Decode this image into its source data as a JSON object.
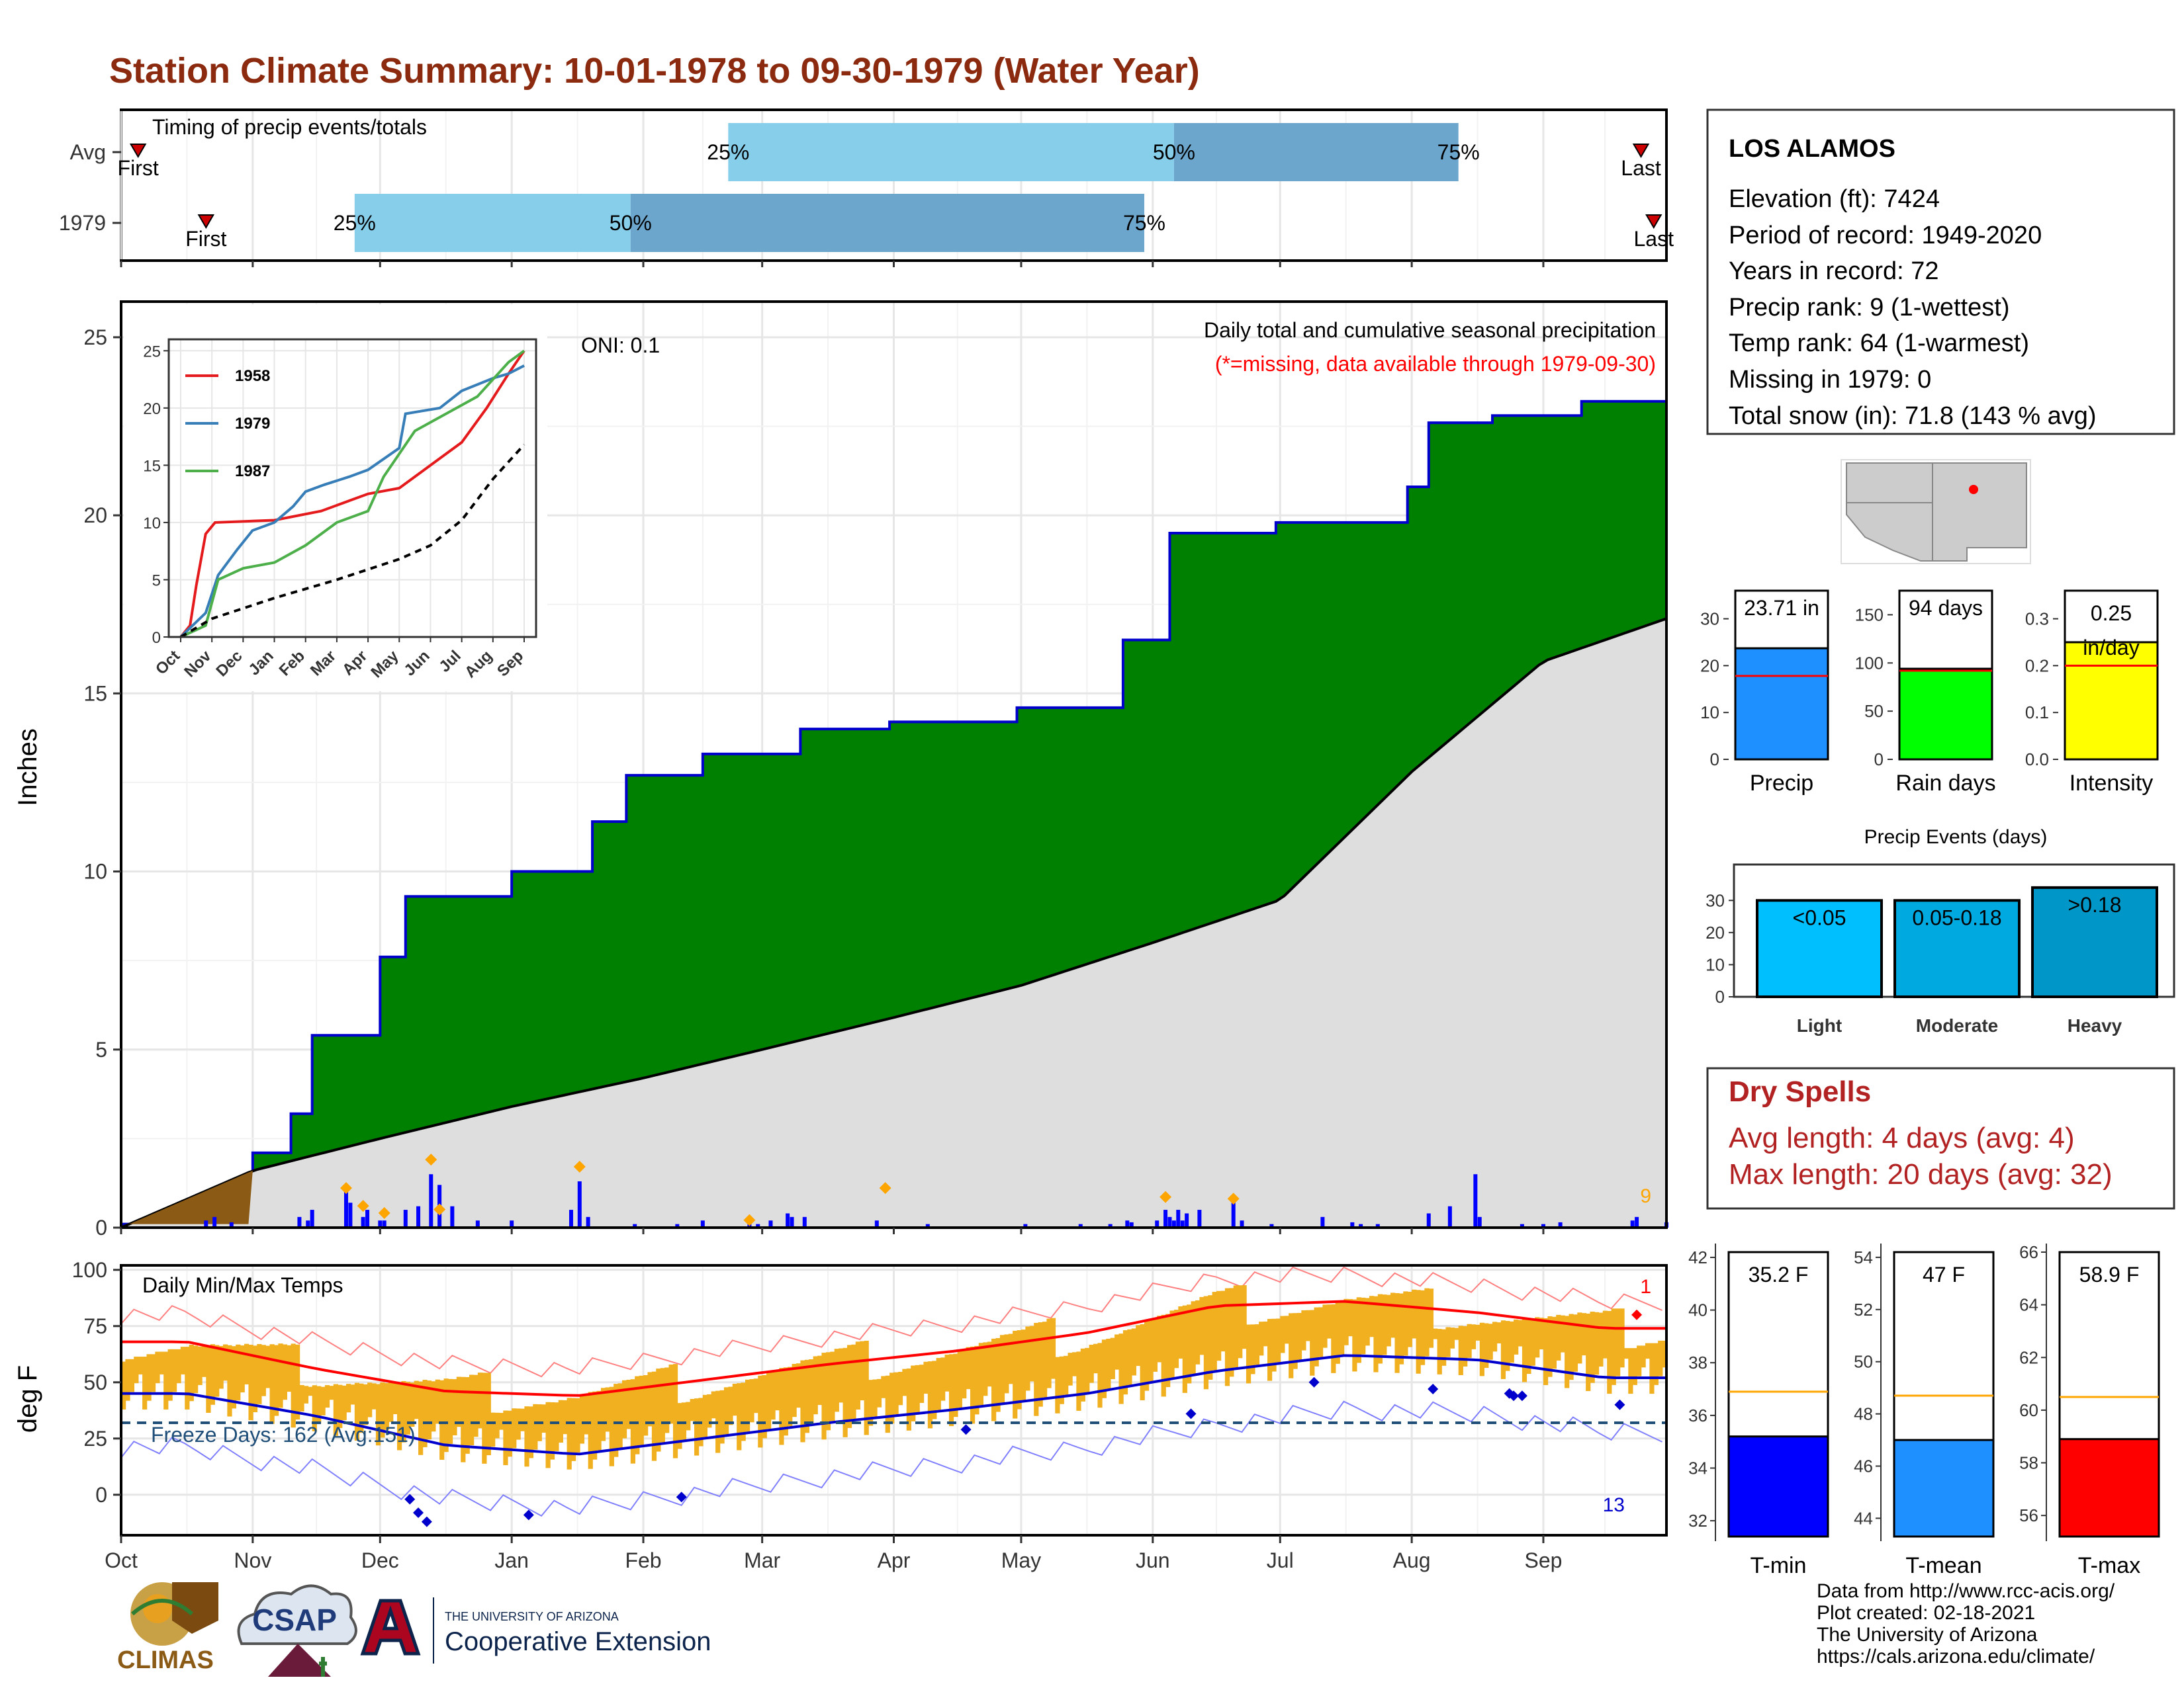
{
  "title": "Station Climate Summary: 10-01-1978 to 09-30-1979 (Water Year)",
  "colors": {
    "title": "#8B2A0E",
    "cumulative_fill": "#008000",
    "cumulative_edge": "#0000CC",
    "avg_fill": "#DEDEDE",
    "antecedent_fill": "#8B5A14",
    "bar_daily": "#0000FF",
    "quartile_light": "#87CEEB",
    "quartile_dark": "#6CA6CD",
    "temp_range": "#F0B020",
    "tmax_line": "#FF0000",
    "tmin_line": "#0000CC",
    "freeze_line": "#1F4E79",
    "precip_bar": "#1E90FF",
    "raindays_bar": "#00FF00",
    "intensity_bar": "#FFFF00",
    "tmin_bar": "#0000FF",
    "tmean_bar": "#1E90FF",
    "tmax_bar": "#FF0000",
    "light_bar": "#00BFFF",
    "moderate_bar": "#00AAE0",
    "heavy_bar": "#0096C8",
    "dry_spells_text": "#B22222"
  },
  "timing": {
    "title": "Timing of precip events/totals",
    "rows": [
      {
        "label": "Avg",
        "first_label": "First",
        "last_label": "Last",
        "first_date": "1978-10-05",
        "q25": "1979-02-21",
        "q50": "1979-06-06",
        "q75": "1979-08-12",
        "last_date": "1979-09-24",
        "q25_label": "25%",
        "q50_label": "50%",
        "q75_label": "75%"
      },
      {
        "label": "1979",
        "first_label": "First",
        "last_label": "Last",
        "first_date": "1978-10-21",
        "q25": "1978-11-25",
        "q50": "1979-01-29",
        "q75": "1979-05-30",
        "last_date": "1979-09-27",
        "q25_label": "25%",
        "q50_label": "50%",
        "q75_label": "75%"
      }
    ]
  },
  "months": [
    "Oct",
    "Nov",
    "Dec",
    "Jan",
    "Feb",
    "Mar",
    "Apr",
    "May",
    "Jun",
    "Jul",
    "Aug",
    "Sep"
  ],
  "precip_panel": {
    "ylabel": "Inches",
    "oni": "ONI: 0.1",
    "subtitle": "Daily total and cumulative seasonal precipitation",
    "missing_note": "(*=missing, data available through 1979-09-30)",
    "y_ticks": [
      "0",
      "5",
      "10",
      "15",
      "20",
      "25"
    ],
    "corner_count": "9"
  },
  "inset": {
    "y_ticks": [
      "0",
      "5",
      "10",
      "15",
      "20",
      "25"
    ],
    "x_ticks": [
      "Oct",
      "Nov",
      "Dec",
      "Jan",
      "Feb",
      "Mar",
      "Apr",
      "May",
      "Jun",
      "Jul",
      "Aug",
      "Sep"
    ],
    "legend": [
      "1958",
      "1979",
      "1987"
    ]
  },
  "temp_panel": {
    "ylabel": "deg F",
    "title": "Daily Min/Max Temps",
    "freeze": "Freeze Days: 162 (Avg:151)",
    "y_ticks": [
      "0",
      "25",
      "50",
      "75",
      "100"
    ],
    "count_max": "1",
    "count_min": "13"
  },
  "station": {
    "name": "LOS ALAMOS",
    "lines": [
      "Elevation (ft): 7424",
      "Period of record: 1949-2020",
      "Years in record: 72",
      "Precip rank: 9 (1-wettest)",
      "Temp rank: 64 (1-warmest)",
      "Missing in 1979: 0",
      "Total snow (in): 71.8 (143 % avg)"
    ]
  },
  "summary_bars": [
    {
      "label": "Precip",
      "value_text": "23.71 in",
      "ticks": [
        "0",
        "10",
        "20",
        "30"
      ]
    },
    {
      "label": "Rain days",
      "value_text": "94 days",
      "ticks": [
        "0",
        "50",
        "100",
        "150"
      ]
    },
    {
      "label": "Intensity",
      "value_text": "0.25 in/day",
      "ticks": [
        "0.0",
        "0.1",
        "0.2",
        "0.3"
      ]
    }
  ],
  "precip_events": {
    "title": "Precip Events (days)",
    "ticks": [
      "0",
      "10",
      "20",
      "30"
    ],
    "bars": [
      {
        "label": "Light",
        "value_text": "<0.05"
      },
      {
        "label": "Moderate",
        "value_text": "0.05-0.18"
      },
      {
        "label": "Heavy",
        "value_text": ">0.18"
      }
    ]
  },
  "dry_spells": {
    "title": "Dry Spells",
    "avg": "Avg length: 4 days (avg: 4)",
    "max": "Max length: 20 days (avg: 32)"
  },
  "temp_bars": [
    {
      "label": "T-min",
      "value_text": "35.2 F",
      "ticks": [
        "32",
        "34",
        "36",
        "38",
        "40",
        "42"
      ]
    },
    {
      "label": "T-mean",
      "value_text": "47 F",
      "ticks": [
        "44",
        "46",
        "48",
        "50",
        "52",
        "54"
      ]
    },
    {
      "label": "T-max",
      "value_text": "58.9 F",
      "ticks": [
        "56",
        "58",
        "60",
        "62",
        "64",
        "66"
      ]
    }
  ],
  "credits": [
    "Data from http://www.rcc-acis.org/",
    "Plot created: 02-18-2021",
    "The University of Arizona",
    "https://cals.arizona.edu/climate/"
  ],
  "logos": {
    "climas": "CLIMAS",
    "csap": "CSAP",
    "ua_small": "THE UNIVERSITY OF ARIZONA",
    "ua_big": "Cooperative Extension"
  },
  "chart_data": [
    {
      "type": "area",
      "title": "Daily total and cumulative seasonal precipitation",
      "ylabel": "Inches",
      "ylim": [
        0,
        26
      ],
      "series": [
        {
          "name": "1979",
          "x": [
            "1978-10-01",
            "1978-11-01",
            "1978-11-10",
            "1978-11-15",
            "1978-12-01",
            "1978-12-07",
            "1979-01-01",
            "1979-01-20",
            "1979-01-28",
            "1979-02-15",
            "1979-03-10",
            "1979-03-31",
            "1979-04-30",
            "1979-05-25",
            "1979-06-05",
            "1979-06-30",
            "1979-07-31",
            "1979-08-05",
            "1979-08-20",
            "1979-09-10",
            "1979-09-30"
          ],
          "values": [
            0.1,
            2.1,
            3.2,
            5.4,
            7.6,
            9.3,
            10.0,
            11.4,
            12.7,
            13.3,
            14.0,
            14.2,
            14.6,
            16.5,
            19.5,
            19.8,
            20.8,
            22.6,
            22.8,
            23.2,
            23.7
          ]
        },
        {
          "name": "Avg",
          "x": [
            "1978-10-01",
            "1978-11-01",
            "1978-12-01",
            "1979-01-01",
            "1979-02-01",
            "1979-03-01",
            "1979-04-01",
            "1979-05-01",
            "1979-06-01",
            "1979-07-01",
            "1979-08-01",
            "1979-09-01",
            "1979-09-30"
          ],
          "values": [
            0,
            1.6,
            2.5,
            3.4,
            4.2,
            5.0,
            5.9,
            6.8,
            8.0,
            9.2,
            12.8,
            15.9,
            17.1
          ]
        }
      ]
    },
    {
      "type": "line",
      "title": "Daily Min/Max Temps",
      "ylabel": "deg F",
      "ylim": [
        -18,
        102
      ],
      "series": [
        {
          "name": "Tmax",
          "x": [
            "Oct",
            "Nov",
            "Dec",
            "Jan",
            "Feb",
            "Mar",
            "Apr",
            "May",
            "Jun",
            "Jul",
            "Aug",
            "Sep"
          ],
          "values": [
            62,
            50,
            40,
            38,
            45,
            52,
            58,
            66,
            78,
            80,
            75,
            68
          ]
        },
        {
          "name": "Tmin",
          "x": [
            "Oct",
            "Nov",
            "Dec",
            "Jan",
            "Feb",
            "Mar",
            "Apr",
            "May",
            "Jun",
            "Jul",
            "Aug",
            "Sep"
          ],
          "values": [
            35,
            25,
            12,
            8,
            15,
            22,
            28,
            35,
            45,
            52,
            50,
            42
          ]
        }
      ]
    },
    {
      "type": "bar",
      "title": "Precip Events (days)",
      "categories": [
        "Light",
        "Moderate",
        "Heavy"
      ],
      "values": [
        30,
        30,
        34
      ],
      "ylim": [
        0,
        35
      ]
    }
  ]
}
